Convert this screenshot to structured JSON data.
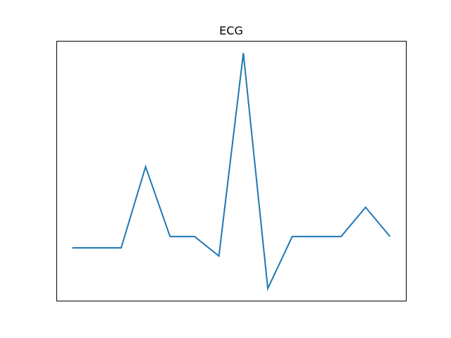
{
  "chart_data": {
    "type": "line",
    "title": "ECG",
    "xlabel": "",
    "ylabel": "",
    "axes_visible": false,
    "grid": false,
    "series": [
      {
        "color": "#1f77b4",
        "x": [
          0,
          1,
          2,
          3,
          4,
          5,
          6,
          7,
          8,
          9,
          10,
          11,
          12,
          13
        ],
        "values": [
          0.0,
          0.0,
          0.0,
          0.5,
          0.07,
          0.07,
          -0.05,
          1.2,
          -0.25,
          0.07,
          0.07,
          0.07,
          0.25,
          0.07
        ]
      }
    ],
    "xlim": [
      -0.65,
      13.65
    ],
    "ylim": [
      -0.325,
      1.275
    ]
  }
}
